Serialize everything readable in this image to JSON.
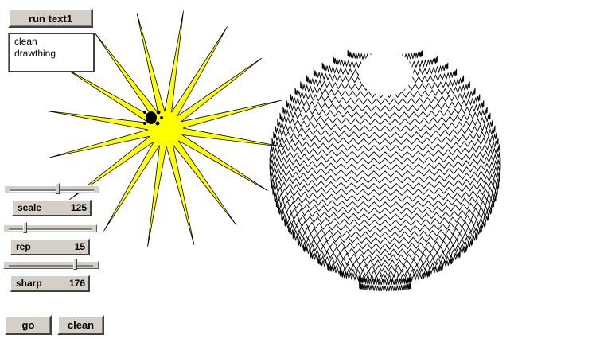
{
  "run_button": {
    "label": "run text1"
  },
  "procedures_text": {
    "lines": [
      "clean",
      "drawthing"
    ]
  },
  "sliders": [
    {
      "id": "scale",
      "label": "scale",
      "value": "125",
      "position": 0.57
    },
    {
      "id": "rep",
      "label": "rep",
      "value": "15",
      "position": 0.18
    },
    {
      "id": "sharp",
      "label": "sharp",
      "value": "176",
      "position": 0.8
    }
  ],
  "go_button": {
    "label": "go"
  },
  "clean_button": {
    "label": "clean"
  },
  "colors": {
    "star_fill": "#ffff00",
    "line": "#000000",
    "widget_face": "#d4d0c8"
  }
}
